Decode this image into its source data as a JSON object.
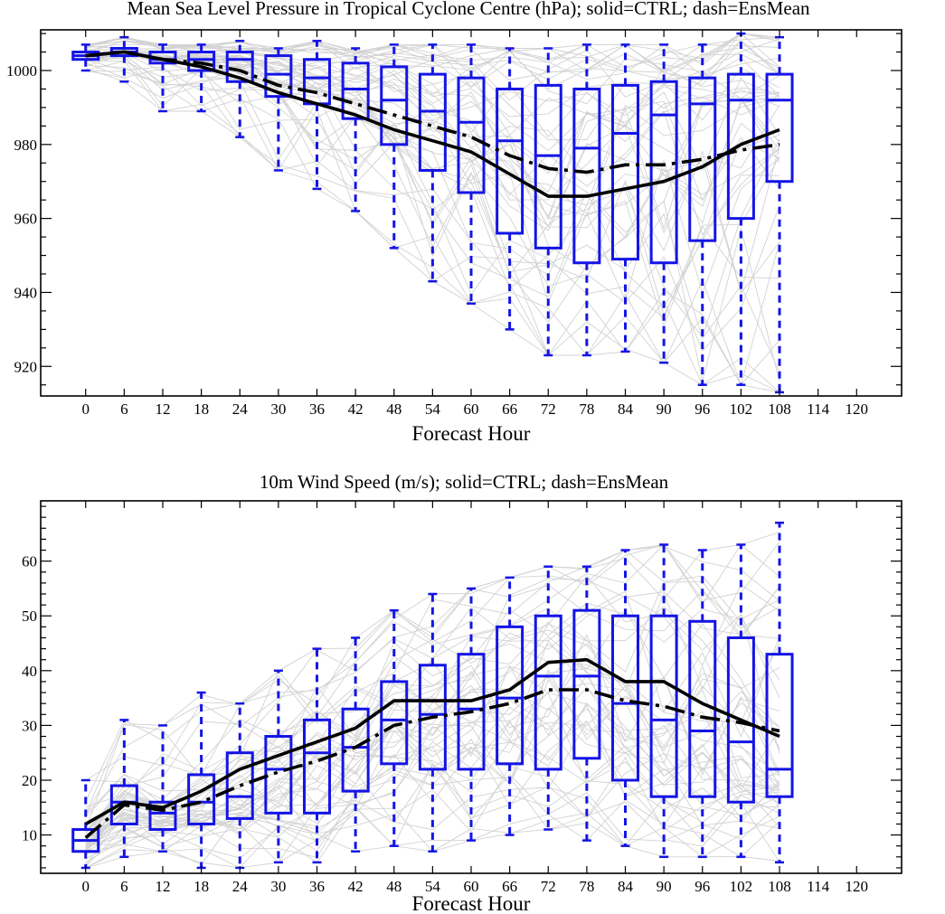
{
  "chart_data": [
    {
      "type": "boxplot",
      "title": "Mean Sea Level Pressure in Tropical Cyclone Centre (hPa); solid=CTRL; dash=EnsMean",
      "xlabel": "Forecast Hour",
      "ylabel": "",
      "x_ticks": [
        0,
        6,
        12,
        18,
        24,
        30,
        36,
        42,
        48,
        54,
        60,
        66,
        72,
        78,
        84,
        90,
        96,
        102,
        108,
        114,
        120
      ],
      "xlim": [
        -7,
        127
      ],
      "ylim": [
        912,
        1011
      ],
      "y_ticks": [
        920,
        940,
        960,
        980,
        1000
      ],
      "y_minor_step": 5,
      "grid": false,
      "series": [
        {
          "name": "CTRL",
          "line_style": "solid",
          "x": [
            0,
            6,
            12,
            18,
            24,
            30,
            36,
            42,
            48,
            54,
            60,
            66,
            72,
            78,
            84,
            90,
            96,
            102,
            108
          ],
          "values": [
            1004,
            1005,
            1003,
            1001,
            998,
            994,
            991,
            988,
            984,
            981,
            978,
            972,
            966,
            966,
            968,
            970,
            974,
            980,
            984
          ]
        },
        {
          "name": "EnsMean",
          "line_style": "dash",
          "x": [
            0,
            6,
            12,
            18,
            24,
            30,
            36,
            42,
            48,
            54,
            60,
            66,
            72,
            78,
            84,
            90,
            96,
            102,
            108
          ],
          "values": [
            1004,
            1005,
            1003,
            1002,
            1000,
            996,
            994,
            991,
            988,
            985,
            982,
            977,
            973.5,
            972.5,
            974.5,
            974.5,
            976,
            978.5,
            980
          ]
        }
      ],
      "boxes": {
        "x": [
          0,
          6,
          12,
          18,
          24,
          30,
          36,
          42,
          48,
          54,
          60,
          66,
          72,
          78,
          84,
          90,
          96,
          102,
          108
        ],
        "min": [
          1000,
          997,
          989,
          989,
          982,
          973,
          968,
          962,
          952,
          943,
          937,
          930,
          923,
          923,
          924,
          921,
          915,
          915,
          913
        ],
        "q1": [
          1003,
          1004,
          1002,
          1000,
          997,
          993,
          991,
          987,
          980,
          973,
          967,
          956,
          952,
          948,
          949,
          948,
          954,
          960,
          970
        ],
        "median": [
          1004,
          1005,
          1003,
          1003,
          1003,
          999,
          998,
          995,
          992,
          989,
          986,
          981,
          977,
          979,
          983,
          988,
          991,
          992,
          992
        ],
        "q3": [
          1005,
          1006,
          1005,
          1005,
          1005,
          1004,
          1003,
          1002,
          1001,
          999,
          998,
          995,
          996,
          995,
          996,
          997,
          998,
          999,
          999
        ],
        "max": [
          1007,
          1009,
          1007,
          1007,
          1008,
          1006,
          1008,
          1006,
          1007,
          1007,
          1007,
          1006,
          1006,
          1007,
          1007,
          1007,
          1007,
          1010,
          1009
        ]
      },
      "colors": {
        "box": "#1414e6",
        "line": "#000000",
        "members": "#d2d2d2"
      }
    },
    {
      "type": "boxplot",
      "title": "10m Wind Speed (m/s); solid=CTRL; dash=EnsMean",
      "xlabel": "Forecast Hour",
      "ylabel": "",
      "x_ticks": [
        0,
        6,
        12,
        18,
        24,
        30,
        36,
        42,
        48,
        54,
        60,
        66,
        72,
        78,
        84,
        90,
        96,
        102,
        108,
        114,
        120
      ],
      "xlim": [
        -7,
        127
      ],
      "ylim": [
        3,
        71
      ],
      "y_ticks": [
        10,
        20,
        30,
        40,
        50,
        60
      ],
      "y_minor_step": 2,
      "grid": false,
      "series": [
        {
          "name": "CTRL",
          "line_style": "solid",
          "x": [
            0,
            6,
            12,
            18,
            24,
            30,
            36,
            42,
            48,
            54,
            60,
            66,
            72,
            78,
            84,
            90,
            96,
            102,
            108
          ],
          "values": [
            12,
            16,
            15,
            18,
            22,
            24.5,
            27,
            29.5,
            34.5,
            34.5,
            34.5,
            36.5,
            41.5,
            42,
            38,
            38,
            34,
            31,
            28
          ]
        },
        {
          "name": "EnsMean",
          "line_style": "dash",
          "x": [
            0,
            6,
            12,
            18,
            24,
            30,
            36,
            42,
            48,
            54,
            60,
            66,
            72,
            78,
            84,
            90,
            96,
            102,
            108
          ],
          "values": [
            9.5,
            15.5,
            14.5,
            16,
            19,
            21.5,
            23.5,
            26,
            30,
            31.5,
            32.5,
            34,
            36.5,
            36.5,
            34.5,
            33.5,
            31.5,
            30.5,
            29
          ]
        }
      ],
      "boxes": {
        "x": [
          0,
          6,
          12,
          18,
          24,
          30,
          36,
          42,
          48,
          54,
          60,
          66,
          72,
          78,
          84,
          90,
          96,
          102,
          108
        ],
        "min": [
          4,
          6,
          7,
          4,
          4,
          5,
          5,
          7,
          8,
          7,
          9,
          10,
          11,
          9,
          8,
          6,
          6,
          6,
          5
        ],
        "q1": [
          7,
          12,
          11,
          12,
          13,
          14,
          14,
          18,
          23,
          22,
          22,
          23,
          22,
          24,
          20,
          17,
          17,
          16,
          17
        ],
        "median": [
          9,
          16,
          14,
          16,
          17,
          22,
          25,
          26,
          31,
          32,
          33,
          35,
          39,
          39,
          34,
          31,
          29,
          27,
          22
        ],
        "q3": [
          11,
          19,
          16,
          21,
          25,
          28,
          31,
          33,
          38,
          41,
          43,
          48,
          50,
          51,
          50,
          50,
          49,
          46,
          43
        ],
        "max": [
          20,
          31,
          30,
          36,
          34,
          40,
          44,
          46,
          51,
          54,
          55,
          57,
          59,
          59,
          62,
          63,
          62,
          63,
          67
        ]
      },
      "colors": {
        "box": "#1414e6",
        "line": "#000000",
        "members": "#d2d2d2"
      }
    }
  ]
}
